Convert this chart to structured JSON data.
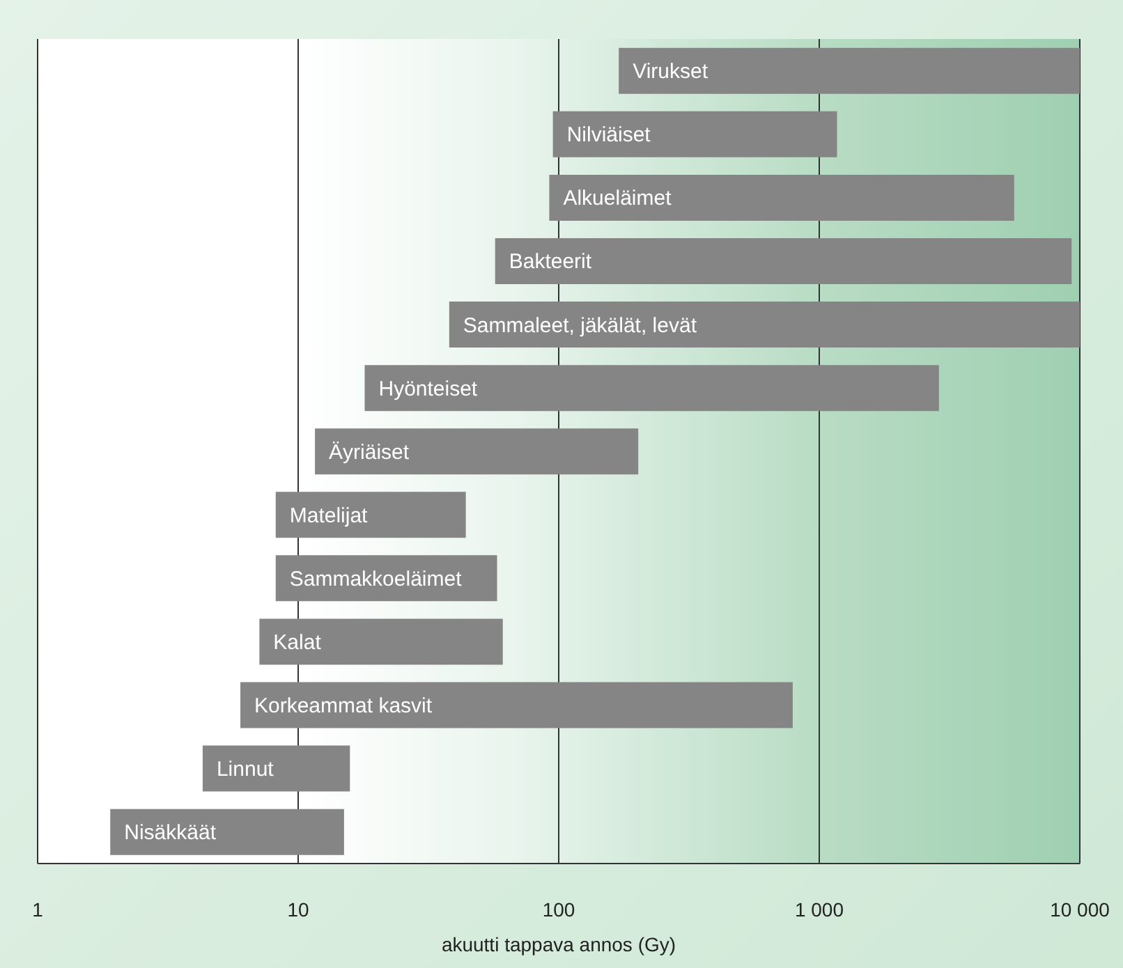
{
  "chart_data": {
    "type": "bar",
    "orientation": "horizontal",
    "log": "x",
    "xlabel": "akuutti tappava annos (Gy)",
    "categories": [
      "Virukset",
      "Nilviäiset",
      "Alkueläimet",
      "Bakteerit",
      "Sammaleet, jäkälät, levät",
      "Hyönteiset",
      "Äyriäiset",
      "Matelijat",
      "Sammakkoeläimet",
      "Kalat",
      "Korkeammat kasvit",
      "Linnut",
      "Nisäkkäät"
    ],
    "base": [
      170,
      95,
      92,
      57,
      38,
      18,
      11.6,
      8.2,
      8.2,
      7.1,
      6,
      4.3,
      1.9
    ],
    "values": [
      9830,
      1075,
      5508,
      9243,
      9962,
      2862,
      190.4,
      35.8,
      49.8,
      53.9,
      785,
      11.5,
      13.1
    ],
    "color": "#858585",
    "xlim": [
      1,
      10000
    ],
    "xticks": [
      1,
      10,
      100,
      {
        "value": 1000,
        "label": "1 000"
      },
      {
        "value": 10000,
        "label": "10 000"
      }
    ],
    "grid": "x"
  }
}
